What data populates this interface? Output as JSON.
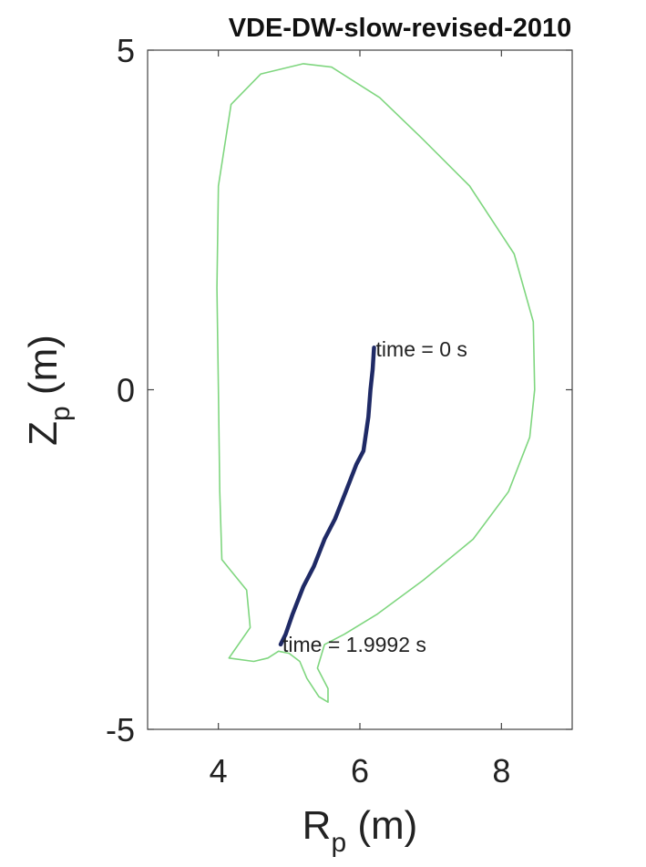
{
  "chart_data": {
    "type": "line",
    "title": "VDE-DW-slow-revised-2010",
    "xlabel": {
      "main": "R",
      "sub": "p",
      "unit": " (m)"
    },
    "ylabel": {
      "main": "Z",
      "sub": "p",
      "unit": " (m)"
    },
    "xlim": [
      3.0,
      9.0
    ],
    "ylim": [
      -5,
      5
    ],
    "xticks": [
      4,
      6,
      8
    ],
    "yticks": [
      -5,
      0,
      5
    ],
    "grid": false,
    "legend": "none",
    "series": [
      {
        "role": "boundary",
        "color": "#7fd67f",
        "x": [
          6.28,
          6.88,
          7.55,
          8.18,
          8.45,
          8.47,
          8.4,
          8.1,
          7.6,
          6.9,
          6.25,
          5.78,
          5.5,
          5.4,
          5.55,
          5.55,
          5.42,
          5.25,
          5.15,
          5.0,
          4.85,
          4.7,
          4.5,
          4.15,
          4.45,
          4.4,
          4.05,
          4.02,
          4.0,
          3.98,
          4.0,
          4.18,
          4.6,
          5.2,
          5.6,
          6.28
        ],
        "y": [
          4.3,
          3.7,
          3.0,
          2.0,
          1.0,
          0.0,
          -0.7,
          -1.5,
          -2.2,
          -2.8,
          -3.3,
          -3.6,
          -3.75,
          -4.1,
          -4.4,
          -4.6,
          -4.52,
          -4.25,
          -4.0,
          -3.88,
          -3.85,
          -3.95,
          -4.0,
          -3.95,
          -3.5,
          -2.95,
          -2.5,
          -1.5,
          0.0,
          1.5,
          3.0,
          4.2,
          4.65,
          4.8,
          4.75,
          4.3
        ]
      },
      {
        "role": "trajectory",
        "color": "#1f2a66",
        "x": [
          6.2,
          6.18,
          6.15,
          6.12,
          6.05,
          5.95,
          5.8,
          5.65,
          5.5,
          5.35,
          5.2,
          5.05,
          4.95,
          4.88
        ],
        "y": [
          0.62,
          0.3,
          0.0,
          -0.4,
          -0.9,
          -1.1,
          -1.5,
          -1.9,
          -2.2,
          -2.6,
          -2.9,
          -3.3,
          -3.6,
          -3.75
        ]
      }
    ],
    "annotations": [
      {
        "text": "time = 0 s",
        "x": 6.2,
        "y": 0.6
      },
      {
        "text": "time = 1.9992 s",
        "x": 4.88,
        "y": -3.75
      }
    ]
  }
}
